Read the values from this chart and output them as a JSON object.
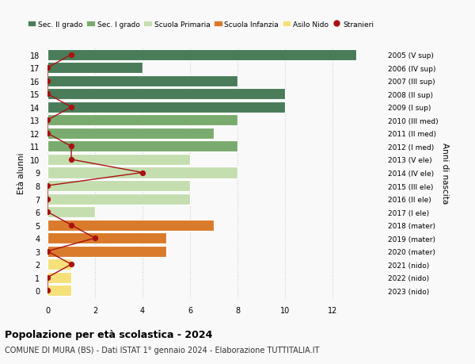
{
  "ages": [
    18,
    17,
    16,
    15,
    14,
    13,
    12,
    11,
    10,
    9,
    8,
    7,
    6,
    5,
    4,
    3,
    2,
    1,
    0
  ],
  "right_labels": [
    "2005 (V sup)",
    "2006 (IV sup)",
    "2007 (III sup)",
    "2008 (II sup)",
    "2009 (I sup)",
    "2010 (III med)",
    "2011 (II med)",
    "2012 (I med)",
    "2013 (V ele)",
    "2014 (IV ele)",
    "2015 (III ele)",
    "2016 (II ele)",
    "2017 (I ele)",
    "2018 (mater)",
    "2019 (mater)",
    "2020 (mater)",
    "2021 (nido)",
    "2022 (nido)",
    "2023 (nido)"
  ],
  "bar_values": [
    13,
    4,
    8,
    10,
    10,
    8,
    7,
    8,
    6,
    8,
    6,
    6,
    2,
    7,
    5,
    5,
    1,
    1,
    1
  ],
  "bar_colors": [
    "#4a7c59",
    "#4a7c59",
    "#4a7c59",
    "#4a7c59",
    "#4a7c59",
    "#7aab6e",
    "#7aab6e",
    "#7aab6e",
    "#c5deb0",
    "#c5deb0",
    "#c5deb0",
    "#c5deb0",
    "#c5deb0",
    "#d97b2b",
    "#d97b2b",
    "#d97b2b",
    "#f5e07a",
    "#f5e07a",
    "#f5e07a"
  ],
  "stranieri_values": [
    1,
    0,
    0,
    0,
    1,
    0,
    0,
    1,
    1,
    4,
    0,
    0,
    0,
    1,
    2,
    0,
    1,
    0,
    0
  ],
  "title_bold": "Popolazione per età scolastica - 2024",
  "subtitle": "COMUNE DI MURA (BS) - Dati ISTAT 1° gennaio 2024 - Elaborazione TUTTITALIA.IT",
  "ylabel": "Età alunni",
  "right_ylabel": "Anni di nascita",
  "legend_entries": [
    {
      "label": "Sec. II grado",
      "color": "#4a7c59"
    },
    {
      "label": "Sec. I grado",
      "color": "#7aab6e"
    },
    {
      "label": "Scuola Primaria",
      "color": "#c5deb0"
    },
    {
      "label": "Scuola Infanzia",
      "color": "#d97b2b"
    },
    {
      "label": "Asilo Nido",
      "color": "#f5e07a"
    },
    {
      "label": "Stranieri",
      "color": "#aa1111"
    }
  ],
  "bg_color": "#f9f9f9",
  "bar_edgecolor": "white",
  "grid_color": "#cccccc",
  "xlim": [
    0,
    14
  ],
  "xticks": [
    0,
    2,
    4,
    6,
    8,
    10,
    12
  ]
}
